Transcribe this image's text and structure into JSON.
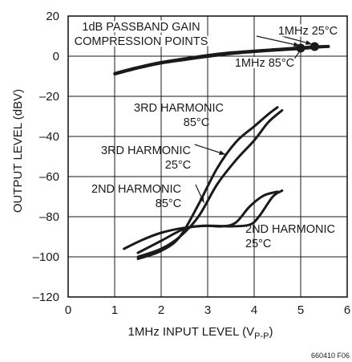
{
  "chart_data": {
    "type": "line",
    "title": "",
    "xlabel": "1MHz INPUT LEVEL (V",
    "xlabel_sub": "P-P",
    "xlabel_close": ")",
    "ylabel": "OUTPUT LEVEL (dBV)",
    "xlim": [
      0,
      6
    ],
    "ylim": [
      -120,
      20
    ],
    "x_ticks": [
      0,
      1,
      2,
      3,
      4,
      5,
      6
    ],
    "y_ticks": [
      20,
      0,
      -20,
      -40,
      -60,
      -80,
      -100,
      -120
    ],
    "x_tick_labels": [
      "0",
      "1",
      "2",
      "3",
      "4",
      "5",
      "6"
    ],
    "y_tick_labels": [
      "20",
      "0",
      "–20",
      "–40",
      "–60",
      "–80",
      "–100",
      "–120"
    ],
    "grid": true,
    "figure_id": "660410 F06",
    "series": [
      {
        "key": "fundamental_25",
        "points": [
          [
            1.0,
            -8.5
          ],
          [
            1.5,
            -5.5
          ],
          [
            2.0,
            -3
          ],
          [
            2.5,
            -1.2
          ],
          [
            3.0,
            0.5
          ],
          [
            3.5,
            1.8
          ],
          [
            4.0,
            2.7
          ],
          [
            4.5,
            3.5
          ],
          [
            5.0,
            4.3
          ],
          [
            5.3,
            4.8
          ],
          [
            5.6,
            5.0
          ]
        ]
      },
      {
        "key": "fundamental_85",
        "points": [
          [
            1.0,
            -9
          ],
          [
            1.5,
            -6
          ],
          [
            2.0,
            -3.5
          ],
          [
            2.5,
            -1.8
          ],
          [
            3.0,
            -0.2
          ],
          [
            3.5,
            1.2
          ],
          [
            4.0,
            2.2
          ],
          [
            4.5,
            3.0
          ],
          [
            5.0,
            3.7
          ],
          [
            5.3,
            4.3
          ],
          [
            5.6,
            4.7
          ]
        ]
      },
      {
        "key": "h3_85",
        "points": [
          [
            1.5,
            -101
          ],
          [
            2.0,
            -97
          ],
          [
            2.4,
            -90
          ],
          [
            2.8,
            -74
          ],
          [
            3.2,
            -56
          ],
          [
            3.6,
            -43
          ],
          [
            4.0,
            -35
          ],
          [
            4.3,
            -29
          ],
          [
            4.5,
            -25.5
          ]
        ]
      },
      {
        "key": "h3_25",
        "points": [
          [
            1.5,
            -100
          ],
          [
            2.0,
            -96
          ],
          [
            2.4,
            -90
          ],
          [
            2.8,
            -80
          ],
          [
            3.2,
            -64
          ],
          [
            3.6,
            -52
          ],
          [
            4.0,
            -42
          ],
          [
            4.3,
            -33
          ],
          [
            4.6,
            -27
          ]
        ]
      },
      {
        "key": "h2_85",
        "points": [
          [
            1.5,
            -98
          ],
          [
            2.0,
            -92
          ],
          [
            2.5,
            -86
          ],
          [
            2.9,
            -84.5
          ],
          [
            3.3,
            -84.8
          ],
          [
            3.6,
            -83
          ],
          [
            3.9,
            -75
          ],
          [
            4.2,
            -69.5
          ],
          [
            4.5,
            -67.5
          ]
        ]
      },
      {
        "key": "h2_25",
        "points": [
          [
            1.2,
            -96
          ],
          [
            1.6,
            -91.5
          ],
          [
            2.0,
            -88
          ],
          [
            2.5,
            -85.5
          ],
          [
            3.0,
            -84.5
          ],
          [
            3.5,
            -84.8
          ],
          [
            3.9,
            -84
          ],
          [
            4.1,
            -80
          ],
          [
            4.4,
            -70
          ],
          [
            4.6,
            -67
          ]
        ]
      }
    ],
    "markers": [
      {
        "label": "compression-point-85c",
        "x": 5.0,
        "y": 4.0
      },
      {
        "label": "compression-point-25c",
        "x": 5.3,
        "y": 4.8
      }
    ],
    "annotations": [
      {
        "key": "compression",
        "lines": [
          "1dB PASSBAND GAIN",
          "COMPRESSION POINTS"
        ]
      },
      {
        "key": "mhz25",
        "lines": [
          "1MHz 25°C"
        ]
      },
      {
        "key": "mhz85",
        "lines": [
          "1MHz 85°C"
        ]
      },
      {
        "key": "h3_85",
        "lines": [
          "3RD HARMONIC",
          "85°C"
        ]
      },
      {
        "key": "h3_25",
        "lines": [
          "3RD HARMONIC",
          "25°C"
        ]
      },
      {
        "key": "h2_85",
        "lines": [
          "2ND HARMONIC",
          "85°C"
        ]
      },
      {
        "key": "h2_25",
        "lines": [
          "2ND HARMONIC",
          "25°C"
        ]
      }
    ]
  }
}
